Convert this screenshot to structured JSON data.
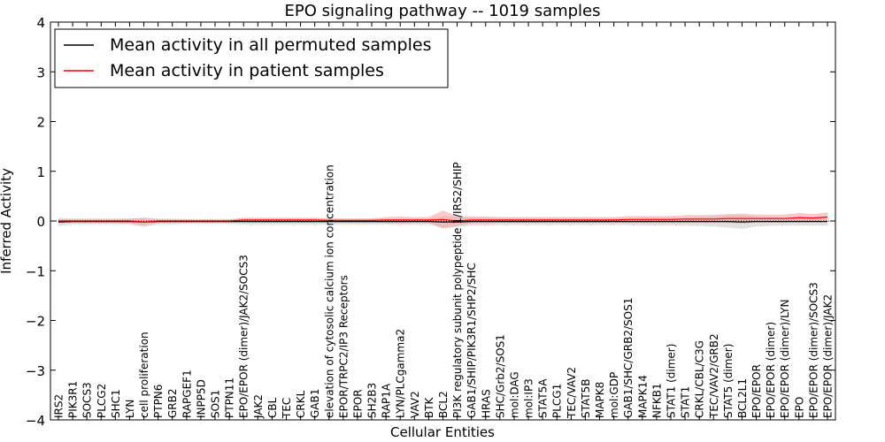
{
  "chart_data": {
    "type": "line",
    "title": "EPO signaling pathway -- 1019 samples",
    "xlabel": "Cellular Entities",
    "ylabel": "Inferred Activity",
    "ylim": [
      -4,
      4
    ],
    "yticks": [
      -4,
      -3,
      -2,
      -1,
      0,
      1,
      2,
      3,
      4
    ],
    "ytick_labels": [
      "−4",
      "−3",
      "−2",
      "−1",
      "0",
      "1",
      "2",
      "3",
      "4"
    ],
    "legend_position": "top-left",
    "categories": [
      "IRS2",
      "PIK3R1",
      "SOCS3",
      "PLCG2",
      "SHC1",
      "LYN",
      "cell proliferation",
      "PTPN6",
      "GRB2",
      "RAPGEF1",
      "INPP5D",
      "SOS1",
      "PTPN11",
      "EPO/EPOR (dimer)/JAK2/SOCS3",
      "JAK2",
      "CBL",
      "TEC",
      "CRKL",
      "GAB1",
      "elevation of cytosolic calcium ion concentration",
      "EPOR/TRPC2/IP3 Receptors",
      "EPOR",
      "SH2B3",
      "RAP1A",
      "LYN/PLCgamma2",
      "VAV2",
      "BTK",
      "BCL2",
      "PI3K regulatory subunit polypeptide 1/IRS2/SHIP",
      "GAB1/SHIP/PIK3R1/SHP2/SHC",
      "HRAS",
      "SHC/Grb2/SOS1",
      "mol:DAG",
      "mol:IP3",
      "STAT5A",
      "PLCG1",
      "TEC/VAV2",
      "STAT5B",
      "MAPK8",
      "mol:GDP",
      "GAB1/SHC/GRB2/SOS1",
      "MAPK14",
      "NFKB1",
      "STAT1 (dimer)",
      "STAT1",
      "CRKL/CBL/C3G",
      "TEC/VAV2/GRB2",
      "STAT5 (dimer)",
      "BCL2L1",
      "EPO/EPOR",
      "EPO/EPOR (dimer)",
      "EPO/EPOR (dimer)/LYN",
      "EPO",
      "EPO/EPOR (dimer)/SOCS3",
      "EPO/EPOR (dimer)/JAK2"
    ],
    "series": [
      {
        "name": "Mean activity in all permuted samples",
        "color": "#000000",
        "band_color": "#bdbdbd",
        "values": [
          -0.02,
          -0.01,
          -0.01,
          -0.01,
          -0.01,
          -0.01,
          -0.02,
          -0.01,
          -0.01,
          -0.01,
          -0.01,
          -0.01,
          -0.01,
          -0.01,
          -0.01,
          -0.01,
          -0.01,
          -0.01,
          -0.01,
          -0.01,
          -0.01,
          -0.01,
          -0.01,
          -0.01,
          -0.01,
          -0.01,
          -0.01,
          -0.02,
          -0.02,
          -0.01,
          -0.01,
          -0.01,
          -0.01,
          -0.01,
          -0.01,
          -0.01,
          -0.01,
          -0.01,
          -0.01,
          -0.01,
          -0.01,
          -0.01,
          -0.01,
          -0.01,
          -0.01,
          -0.01,
          -0.01,
          -0.01,
          -0.02,
          -0.01,
          -0.01,
          -0.01,
          -0.01,
          -0.01,
          -0.01
        ],
        "band": [
          0.08,
          0.06,
          0.06,
          0.06,
          0.06,
          0.06,
          0.1,
          0.06,
          0.06,
          0.05,
          0.05,
          0.05,
          0.05,
          0.06,
          0.06,
          0.06,
          0.06,
          0.06,
          0.06,
          0.06,
          0.06,
          0.06,
          0.06,
          0.06,
          0.06,
          0.06,
          0.06,
          0.12,
          0.1,
          0.08,
          0.08,
          0.07,
          0.07,
          0.07,
          0.07,
          0.07,
          0.07,
          0.07,
          0.07,
          0.07,
          0.07,
          0.08,
          0.08,
          0.08,
          0.08,
          0.09,
          0.1,
          0.12,
          0.14,
          0.1,
          0.09,
          0.08,
          0.08,
          0.08,
          0.08
        ]
      },
      {
        "name": "Mean activity in patient samples",
        "color": "#ff0000",
        "band_color": "#f4a0a0",
        "values": [
          0.0,
          0.0,
          0.0,
          0.0,
          0.0,
          0.0,
          -0.02,
          0.0,
          0.0,
          0.0,
          0.0,
          0.0,
          0.0,
          0.02,
          0.02,
          0.02,
          0.02,
          0.02,
          0.02,
          0.01,
          0.01,
          0.01,
          0.01,
          0.02,
          0.02,
          0.02,
          0.02,
          0.03,
          0.0,
          0.02,
          0.02,
          0.02,
          0.02,
          0.02,
          0.02,
          0.02,
          0.02,
          0.02,
          0.02,
          0.02,
          0.03,
          0.03,
          0.03,
          0.03,
          0.04,
          0.04,
          0.04,
          0.05,
          0.05,
          0.05,
          0.05,
          0.05,
          0.07,
          0.06,
          0.08
        ],
        "band": [
          0.04,
          0.04,
          0.04,
          0.04,
          0.04,
          0.05,
          0.07,
          0.04,
          0.03,
          0.03,
          0.03,
          0.03,
          0.03,
          0.05,
          0.05,
          0.05,
          0.05,
          0.05,
          0.05,
          0.04,
          0.04,
          0.04,
          0.04,
          0.06,
          0.07,
          0.06,
          0.06,
          0.18,
          0.1,
          0.07,
          0.07,
          0.06,
          0.06,
          0.06,
          0.06,
          0.06,
          0.06,
          0.06,
          0.06,
          0.06,
          0.07,
          0.07,
          0.07,
          0.07,
          0.08,
          0.08,
          0.08,
          0.09,
          0.1,
          0.08,
          0.08,
          0.08,
          0.09,
          0.08,
          0.09
        ]
      }
    ]
  }
}
